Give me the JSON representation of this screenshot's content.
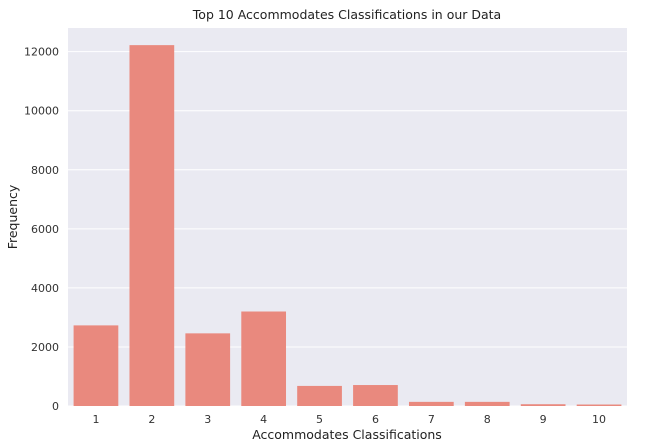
{
  "chart_data": {
    "type": "bar",
    "title": "Top 10 Accommodates Classifications in our Data",
    "xlabel": "Accommodates Classifications",
    "ylabel": "Frequency",
    "categories": [
      "1",
      "2",
      "3",
      "4",
      "5",
      "6",
      "7",
      "8",
      "9",
      "10"
    ],
    "values": [
      2730,
      12220,
      2460,
      3200,
      680,
      710,
      140,
      140,
      60,
      50
    ],
    "ylim": [
      0,
      12800
    ],
    "yticks": [
      0,
      2000,
      4000,
      6000,
      8000,
      10000,
      12000
    ],
    "grid": true,
    "bar_color": "#e9897e",
    "background_color": "#eaeaf2"
  }
}
